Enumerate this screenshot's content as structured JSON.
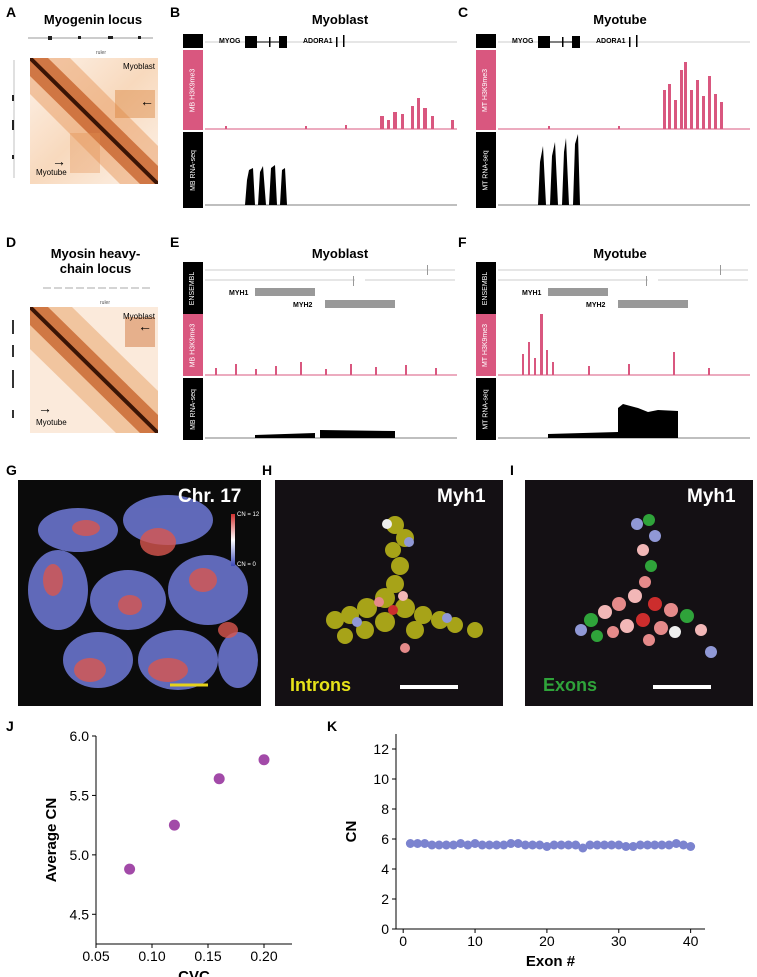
{
  "panels": {
    "A": {
      "letter": "A",
      "title": "Myogenin locus",
      "label_upper": "Myoblast",
      "label_lower": "Myotube"
    },
    "B": {
      "letter": "B",
      "title": "Myoblast",
      "genes": [
        "MYOG",
        "ADORA1"
      ],
      "tracks": [
        "MB H3K9me3",
        "MB RNA-seq"
      ]
    },
    "C": {
      "letter": "C",
      "title": "Myotube",
      "genes": [
        "MYOG",
        "ADORA1"
      ],
      "tracks": [
        "MT H3K9me3",
        "MT RNA-seq"
      ]
    },
    "D": {
      "letter": "D",
      "title": "Myosin heavy-\nchain locus",
      "label_upper": "Myoblast",
      "label_lower": "Myotube"
    },
    "E": {
      "letter": "E",
      "title": "Myoblast",
      "genes": [
        "MYH1",
        "MYH2"
      ],
      "tracks": [
        "ENSEMBL",
        "MB H3K9me3",
        "MB RNA-seq"
      ]
    },
    "F": {
      "letter": "F",
      "title": "Myotube",
      "genes": [
        "MYH1",
        "MYH2"
      ],
      "tracks": [
        "ENSEMBL",
        "MT H3K9me3",
        "MT RNA-seq"
      ]
    },
    "G": {
      "letter": "G",
      "label": "Chr. 17",
      "scale_max": "CN = 12",
      "scale_min": "CN = 0"
    },
    "H": {
      "letter": "H",
      "label": "Myh1",
      "caption": "Introns"
    },
    "I": {
      "letter": "I",
      "label": "Myh1",
      "caption": "Exons"
    },
    "J": {
      "letter": "J"
    },
    "K": {
      "letter": "K"
    }
  },
  "colors": {
    "pink": "#d9577f",
    "accent_purple": "#a24aa8",
    "accent_blue": "#7b83cf",
    "intron_yellow": "#e6e21a",
    "exon_green": "#2fa33a"
  },
  "chart_data": [
    {
      "panel": "J",
      "type": "scatter",
      "xlabel": "CVC",
      "ylabel": "Average CN",
      "x": [
        0.08,
        0.12,
        0.16,
        0.2
      ],
      "y": [
        4.88,
        5.25,
        5.64,
        5.8
      ],
      "xlim": [
        0.05,
        0.225
      ],
      "ylim": [
        4.25,
        6.0
      ],
      "xticks": [
        "0.05",
        "0.10",
        "0.15",
        "0.20"
      ],
      "yticks": [
        "4.5",
        "5.0",
        "5.5",
        "6.0"
      ]
    },
    {
      "panel": "K",
      "type": "scatter",
      "xlabel": "Exon #",
      "ylabel": "CN",
      "x": [
        1,
        2,
        3,
        4,
        5,
        6,
        7,
        8,
        9,
        10,
        11,
        12,
        13,
        14,
        15,
        16,
        17,
        18,
        19,
        20,
        21,
        22,
        23,
        24,
        25,
        26,
        27,
        28,
        29,
        30,
        31,
        32,
        33,
        34,
        35,
        36,
        37,
        38,
        39,
        40
      ],
      "y": [
        5.7,
        5.7,
        5.7,
        5.6,
        5.6,
        5.6,
        5.6,
        5.7,
        5.6,
        5.7,
        5.6,
        5.6,
        5.6,
        5.6,
        5.7,
        5.7,
        5.6,
        5.6,
        5.6,
        5.5,
        5.6,
        5.6,
        5.6,
        5.6,
        5.4,
        5.6,
        5.6,
        5.6,
        5.6,
        5.6,
        5.5,
        5.5,
        5.6,
        5.6,
        5.6,
        5.6,
        5.6,
        5.7,
        5.6,
        5.5
      ],
      "xlim": [
        -1,
        42
      ],
      "ylim": [
        0,
        13
      ],
      "xticks": [
        "0",
        "10",
        "20",
        "30",
        "40"
      ],
      "yticks": [
        "0",
        "2",
        "4",
        "6",
        "8",
        "10",
        "12"
      ]
    }
  ]
}
